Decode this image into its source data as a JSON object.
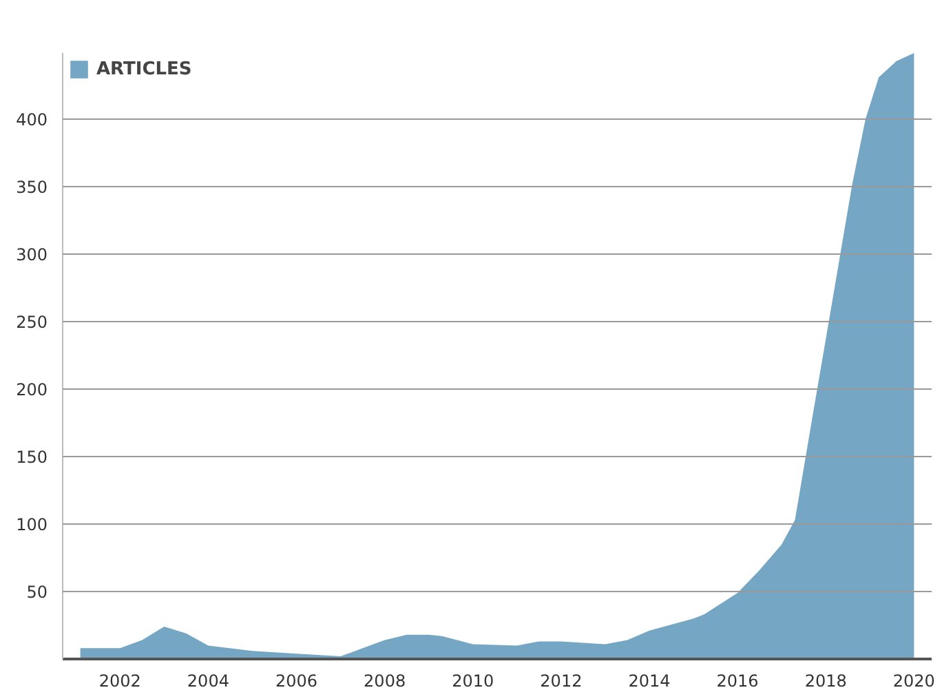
{
  "chart_data": {
    "type": "area",
    "x": [
      2001.1,
      2002,
      2002.5,
      2003,
      2003.5,
      2004,
      2005,
      2006,
      2007,
      2007.5,
      2008,
      2008.5,
      2009,
      2009.3,
      2010,
      2011,
      2011.5,
      2012,
      2013,
      2013.5,
      2014,
      2015,
      2015.24,
      2016,
      2016.5,
      2017,
      2017.3,
      2017.7,
      2018,
      2018.6,
      2018.9,
      2019.2,
      2019.6,
      2020
    ],
    "series": [
      {
        "name": "ARTICLES",
        "color": "#75a7c4",
        "values": [
          8,
          8,
          14,
          24,
          19,
          10,
          6,
          4,
          2,
          8,
          14,
          18,
          18,
          17,
          11,
          10,
          13,
          13,
          11,
          14,
          21,
          30,
          33,
          49,
          66,
          85,
          103,
          180,
          237,
          352,
          400,
          431,
          443,
          449
        ]
      }
    ],
    "xlim": [
      2000.7,
      2020.4
    ],
    "ylim": [
      0,
      449
    ],
    "xticks": [
      2002,
      2004,
      2006,
      2008,
      2010,
      2012,
      2014,
      2016,
      2018,
      2020
    ],
    "yticks": [
      50,
      100,
      150,
      200,
      250,
      300,
      350,
      400
    ],
    "grid": "y",
    "legend": "top left"
  }
}
